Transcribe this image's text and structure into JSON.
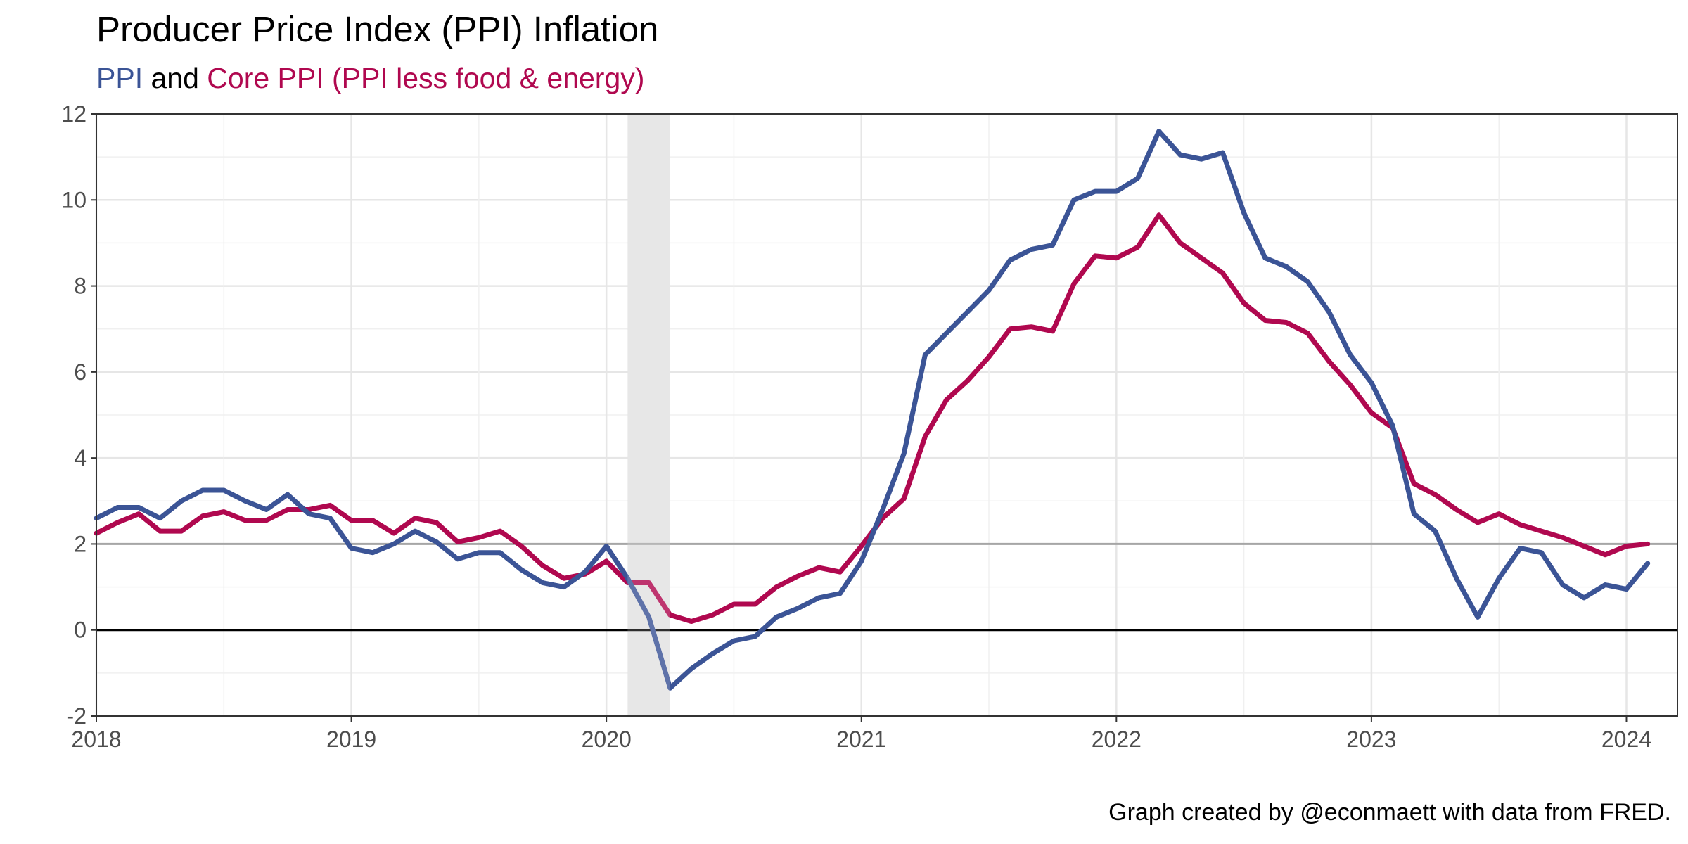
{
  "title": "Producer Price Index (PPI) Inflation",
  "subtitle": {
    "series1": "PPI",
    "connector": " and ",
    "series2": "Core PPI (PPI less food & energy)"
  },
  "caption": "Graph created by @econmaett with data from FRED.",
  "colors": {
    "ppi": "#3b5496",
    "core": "#b0084f",
    "recession": "#e2e2e2",
    "reference_line": "#a6a6a6",
    "zero_line": "#000000",
    "connector_text": "#000000"
  },
  "chart_data": {
    "type": "line",
    "title": "Producer Price Index (PPI) Inflation",
    "xlabel": "",
    "ylabel": "",
    "xlim": [
      "2018-01",
      "2024-03"
    ],
    "ylim": [
      -2,
      12
    ],
    "yticks": [
      -2,
      0,
      2,
      4,
      6,
      8,
      10,
      12
    ],
    "xticks": [
      "2018",
      "2019",
      "2020",
      "2021",
      "2022",
      "2023",
      "2024"
    ],
    "grid": true,
    "reference_lines": [
      2,
      0
    ],
    "recession_shading": {
      "start": "2020-02",
      "end": "2020-04"
    },
    "x_start": "2018-01",
    "x_step": "1 month",
    "series": [
      {
        "name": "PPI",
        "values": [
          2.6,
          2.85,
          2.85,
          2.6,
          3.0,
          3.25,
          3.25,
          3.0,
          2.8,
          3.15,
          2.7,
          2.6,
          1.9,
          1.8,
          2.0,
          2.3,
          2.05,
          1.65,
          1.8,
          1.8,
          1.4,
          1.1,
          1.0,
          1.35,
          1.95,
          1.2,
          0.3,
          -1.35,
          -0.9,
          -0.55,
          -0.25,
          -0.15,
          0.3,
          0.5,
          0.75,
          0.85,
          1.6,
          2.8,
          4.1,
          6.4,
          6.9,
          7.4,
          7.9,
          8.6,
          8.85,
          8.95,
          10.0,
          10.2,
          10.2,
          10.5,
          11.6,
          11.05,
          10.95,
          11.1,
          9.7,
          8.65,
          8.45,
          8.1,
          7.4,
          6.4,
          5.75,
          4.75,
          2.7,
          2.3,
          1.2,
          0.3,
          1.2,
          1.9,
          1.8,
          1.05,
          0.75,
          1.05,
          0.95,
          1.55
        ]
      },
      {
        "name": "Core PPI (PPI less food & energy)",
        "values": [
          2.25,
          2.5,
          2.7,
          2.3,
          2.3,
          2.65,
          2.75,
          2.55,
          2.55,
          2.8,
          2.8,
          2.9,
          2.55,
          2.55,
          2.25,
          2.6,
          2.5,
          2.05,
          2.15,
          2.3,
          1.95,
          1.5,
          1.2,
          1.3,
          1.6,
          1.1,
          1.1,
          0.35,
          0.2,
          0.35,
          0.6,
          0.6,
          1.0,
          1.25,
          1.45,
          1.35,
          1.95,
          2.6,
          3.05,
          4.5,
          5.35,
          5.8,
          6.35,
          7.0,
          7.05,
          6.95,
          8.05,
          8.7,
          8.65,
          8.9,
          9.65,
          9.0,
          8.65,
          8.3,
          7.6,
          7.2,
          7.15,
          6.9,
          6.25,
          5.7,
          5.05,
          4.7,
          3.4,
          3.15,
          2.8,
          2.5,
          2.7,
          2.45,
          2.3,
          2.15,
          1.95,
          1.75,
          1.95,
          2.0
        ]
      }
    ]
  }
}
